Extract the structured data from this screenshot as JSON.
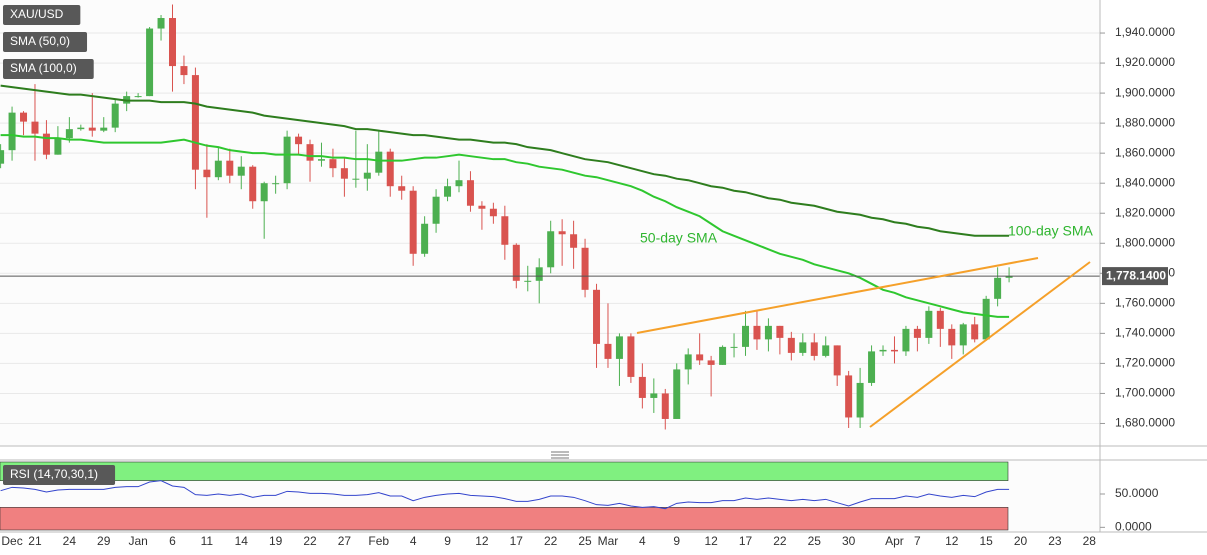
{
  "chart_data": [
    {
      "type": "candlestick",
      "categories": [
        null,
        "Dec",
        null,
        "21",
        null,
        null,
        "24",
        null,
        null,
        "29",
        null,
        null,
        "Jan",
        null,
        null,
        "6",
        null,
        null,
        "11",
        null,
        null,
        "14",
        null,
        null,
        "19",
        null,
        null,
        "22",
        null,
        null,
        "27",
        null,
        null,
        "Feb",
        null,
        null,
        "4",
        null,
        null,
        "9",
        null,
        null,
        "12",
        null,
        null,
        "17",
        null,
        null,
        "22",
        null,
        null,
        "25",
        null,
        "Mar",
        null,
        null,
        "4",
        null,
        null,
        "9",
        null,
        null,
        "12",
        null,
        null,
        "17",
        null,
        null,
        "22",
        null,
        null,
        "25",
        null,
        null,
        "30",
        null,
        null,
        null,
        "Apr",
        null,
        "7",
        null,
        null,
        "12",
        null,
        null,
        "15",
        null,
        null,
        "20",
        null,
        null,
        "23",
        null,
        null,
        "28"
      ],
      "series": [
        {
          "name": "XAU/USD",
          "type": "candlestick",
          "up_color": "#4caf50",
          "down_color": "#d9534f",
          "open": [
            1853,
            1862,
            1887,
            1881,
            1873,
            1859,
            1870,
            1876,
            1877,
            1875,
            1877,
            1893,
            1898,
            1898,
            1943,
            1950,
            1918,
            1912,
            1849,
            1844,
            1855,
            1845,
            1851,
            1828,
            1840,
            1840,
            1871,
            1866,
            1855,
            1856,
            1850,
            1843,
            1843,
            1847,
            1861,
            1838,
            1835,
            1793,
            1813,
            1831,
            1838,
            1842,
            1825,
            1823,
            1818,
            1799,
            1775,
            1775,
            1784,
            1808,
            1806,
            1797,
            1769,
            1733,
            1723,
            1738,
            1711,
            1697,
            1700,
            1683,
            1716,
            1726,
            1722,
            1719,
            1731,
            1731,
            1745,
            1736,
            1745,
            1737,
            1727,
            1734,
            1725,
            1732,
            1712,
            1684,
            1707,
            1728,
            1729,
            1728,
            1743,
            1737,
            1755,
            1743,
            1732,
            1746,
            1736,
            1763,
            1777,
            null,
            null,
            null,
            null,
            null,
            null,
            null
          ],
          "high": [
            1866,
            1891,
            1888,
            1906,
            1882,
            1878,
            1884,
            1879,
            1900,
            1884,
            1896,
            1901,
            1900,
            1944,
            1952,
            1959,
            1925,
            1917,
            1866,
            1864,
            1863,
            1858,
            1852,
            1841,
            1845,
            1875,
            1873,
            1869,
            1867,
            1863,
            1857,
            1875,
            1866,
            1875,
            1863,
            1845,
            1838,
            1818,
            1836,
            1843,
            1855,
            1848,
            1828,
            1827,
            1825,
            1800,
            1785,
            1790,
            1815,
            1816,
            1815,
            1803,
            1773,
            1760,
            1740,
            1740,
            1720,
            1710,
            1703,
            1720,
            1730,
            1740,
            1725,
            1732,
            1740,
            1755,
            1755,
            1750,
            1745,
            1741,
            1740,
            1740,
            1738,
            1732,
            1715,
            1717,
            1732,
            1732,
            1738,
            1745,
            1745,
            1758,
            1757,
            1746,
            1747,
            1751,
            1765,
            1784,
            1784,
            null,
            null,
            null,
            null,
            null,
            null,
            null
          ],
          "low": [
            1850,
            1855,
            1872,
            1855,
            1856,
            1859,
            1867,
            1875,
            1871,
            1874,
            1874,
            1888,
            1897,
            1898,
            1935,
            1901,
            1906,
            1836,
            1817,
            1842,
            1840,
            1836,
            1823,
            1803,
            1833,
            1836,
            1859,
            1841,
            1851,
            1844,
            1831,
            1837,
            1835,
            1845,
            1831,
            1829,
            1785,
            1791,
            1807,
            1828,
            1834,
            1821,
            1809,
            1813,
            1789,
            1770,
            1768,
            1760,
            1780,
            1785,
            1783,
            1764,
            1717,
            1717,
            1705,
            1707,
            1690,
            1687,
            1676,
            1683,
            1706,
            1719,
            1698,
            1719,
            1724,
            1725,
            1729,
            1728,
            1726,
            1722,
            1725,
            1722,
            1724,
            1705,
            1677,
            1677,
            1705,
            1725,
            1720,
            1725,
            1728,
            1733,
            1731,
            1723,
            1726,
            1734,
            1735,
            1758,
            1774,
            null,
            null,
            null,
            null,
            null,
            null,
            null
          ],
          "close": [
            1862,
            1887,
            1881,
            1873,
            1859,
            1870,
            1876,
            1877,
            1875,
            1877,
            1893,
            1898,
            1898,
            1943,
            1950,
            1918,
            1912,
            1849,
            1844,
            1855,
            1845,
            1851,
            1828,
            1840,
            1840,
            1871,
            1866,
            1855,
            1856,
            1850,
            1843,
            1843,
            1847,
            1861,
            1838,
            1835,
            1793,
            1813,
            1831,
            1838,
            1842,
            1825,
            1823,
            1818,
            1799,
            1775,
            1775,
            1784,
            1808,
            1806,
            1797,
            1769,
            1733,
            1723,
            1738,
            1711,
            1697,
            1700,
            1683,
            1716,
            1726,
            1722,
            1719,
            1731,
            1731,
            1745,
            1736,
            1745,
            1737,
            1727,
            1734,
            1725,
            1732,
            1712,
            1684,
            1707,
            1728,
            1729,
            1728,
            1743,
            1737,
            1755,
            1743,
            1732,
            1746,
            1736,
            1763,
            1777,
            1778.14,
            null,
            null,
            null,
            null,
            null,
            null,
            null
          ]
        },
        {
          "name": "SMA (50,0)",
          "type": "line",
          "color": "#2fc72f",
          "values": [
            1872,
            1872,
            1871,
            1871,
            1870,
            1870,
            1869,
            1869,
            1868,
            1867,
            1867,
            1867,
            1867,
            1867,
            1867,
            1868,
            1869,
            1867,
            1865,
            1864,
            1862,
            1861,
            1860,
            1860,
            1859,
            1859,
            1859,
            1858,
            1858,
            1857,
            1857,
            1856,
            1856,
            1855,
            1855,
            1855,
            1856,
            1857,
            1857,
            1858,
            1859,
            1858,
            1857,
            1856,
            1856,
            1854,
            1853,
            1851,
            1850,
            1849,
            1847,
            1845,
            1844,
            1842,
            1840,
            1838,
            1835,
            1831,
            1828,
            1824,
            1821,
            1818,
            1813,
            1808,
            1805,
            1802,
            1799,
            1796,
            1793,
            1791,
            1789,
            1786,
            1784,
            1782,
            1780,
            1777,
            1773,
            1769,
            1767,
            1764,
            1762,
            1760,
            1758,
            1756,
            1754,
            1753,
            1752,
            1751,
            1751,
            null,
            null,
            null,
            null,
            null,
            null,
            null
          ]
        },
        {
          "name": "SMA (100,0)",
          "type": "line",
          "color": "#2e7d1e",
          "values": [
            1905,
            1904,
            1903,
            1902,
            1901,
            1900,
            1899,
            1899,
            1898,
            1897,
            1896,
            1895,
            1895,
            1895,
            1894,
            1894,
            1894,
            1893,
            1891,
            1890,
            1889,
            1888,
            1887,
            1885,
            1884,
            1883,
            1882,
            1881,
            1880,
            1879,
            1878,
            1876,
            1876,
            1875,
            1874,
            1873,
            1872,
            1872,
            1871,
            1870,
            1869,
            1869,
            1868,
            1867,
            1867,
            1866,
            1864,
            1863,
            1862,
            1860,
            1858,
            1856,
            1855,
            1854,
            1852,
            1850,
            1848,
            1846,
            1845,
            1843,
            1842,
            1840,
            1838,
            1837,
            1835,
            1834,
            1832,
            1830,
            1829,
            1827,
            1826,
            1825,
            1823,
            1821,
            1820,
            1819,
            1817,
            1816,
            1814,
            1813,
            1811,
            1810,
            1808,
            1807,
            1806,
            1805,
            1805,
            1805,
            1805,
            null,
            null,
            null,
            null,
            null,
            null,
            null
          ]
        }
      ],
      "ylim": [
        1665,
        1962
      ],
      "yticks": [
        {
          "value": 1680,
          "label": "1,680.0000"
        },
        {
          "value": 1700,
          "label": "1,700.0000"
        },
        {
          "value": 1720,
          "label": "1,720.0000"
        },
        {
          "value": 1740,
          "label": "1,740.0000"
        },
        {
          "value": 1760,
          "label": "1,760.0000"
        },
        {
          "value": 1780,
          "label": "1,780.0000"
        },
        {
          "value": 1800,
          "label": "1,800.0000"
        },
        {
          "value": 1820,
          "label": "1,820.0000"
        },
        {
          "value": 1840,
          "label": "1,840.0000"
        },
        {
          "value": 1860,
          "label": "1,860.0000"
        },
        {
          "value": 1880,
          "label": "1,880.0000"
        },
        {
          "value": 1900,
          "label": "1,900.0000"
        },
        {
          "value": 1920,
          "label": "1,920.0000"
        },
        {
          "value": 1940,
          "label": "1,940.0000"
        }
      ],
      "grid": true,
      "last_price": {
        "value": 1778.14,
        "label": "1,778.1400"
      },
      "annotations": [
        "50-day SMA",
        "100-day SMA"
      ]
    },
    {
      "type": "line",
      "series": [
        {
          "name": "RSI (14,70,30,1)",
          "color": "#3344cc",
          "values": [
            55,
            60,
            59,
            57,
            53,
            56,
            57,
            57,
            57,
            57,
            60,
            61,
            61,
            68,
            70,
            62,
            60,
            49,
            48,
            50,
            48,
            50,
            45,
            48,
            48,
            54,
            53,
            51,
            51,
            50,
            48,
            48,
            49,
            52,
            47,
            47,
            40,
            45,
            48,
            50,
            51,
            48,
            47,
            46,
            43,
            39,
            39,
            42,
            47,
            47,
            45,
            40,
            34,
            33,
            36,
            32,
            30,
            31,
            28,
            36,
            38,
            37,
            37,
            40,
            40,
            44,
            42,
            44,
            42,
            40,
            42,
            40,
            42,
            37,
            32,
            38,
            43,
            43,
            43,
            47,
            45,
            50,
            47,
            45,
            48,
            46,
            53,
            57,
            57,
            null,
            null,
            null,
            null,
            null,
            null,
            null
          ]
        }
      ],
      "ylim": [
        -4,
        101
      ],
      "yticks": [
        {
          "value": 50,
          "label": "50.0000"
        },
        {
          "value": 0,
          "label": "0.0000"
        }
      ],
      "upper": 70,
      "lower": 30,
      "upper_color": "#80f080",
      "lower_color": "#f08080"
    }
  ]
}
